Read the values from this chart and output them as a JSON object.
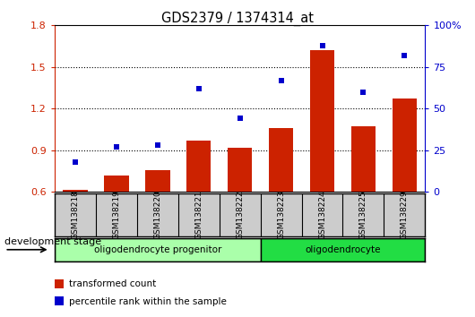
{
  "title": "GDS2379 / 1374314_at",
  "samples": [
    "GSM138218",
    "GSM138219",
    "GSM138220",
    "GSM138221",
    "GSM138222",
    "GSM138223",
    "GSM138224",
    "GSM138225",
    "GSM138229"
  ],
  "transformed_count": [
    0.615,
    0.72,
    0.755,
    0.97,
    0.915,
    1.06,
    1.62,
    1.07,
    1.27
  ],
  "percentile_rank": [
    18,
    27,
    28,
    62,
    44,
    67,
    88,
    60,
    82
  ],
  "ylim_left": [
    0.6,
    1.8
  ],
  "ylim_right": [
    0,
    100
  ],
  "yticks_left": [
    0.6,
    0.9,
    1.2,
    1.5,
    1.8
  ],
  "ytick_labels_left": [
    "0.6",
    "0.9",
    "1.2",
    "1.5",
    "1.8"
  ],
  "ytick_labels_right": [
    "0",
    "25",
    "50",
    "75",
    "100%"
  ],
  "bar_color": "#CC2200",
  "dot_color": "#0000CC",
  "bg_color": "#FFFFFF",
  "sample_box_color": "#CCCCCC",
  "group1_color": "#AAFFAA",
  "group2_color": "#22DD44",
  "groups": [
    {
      "label": "oligodendrocyte progenitor",
      "start": 0,
      "end": 5
    },
    {
      "label": "oligodendrocyte",
      "start": 5,
      "end": 9
    }
  ],
  "legend_items": [
    {
      "label": "transformed count",
      "color": "#CC2200"
    },
    {
      "label": "percentile rank within the sample",
      "color": "#0000CC"
    }
  ],
  "dev_stage_label": "development stage"
}
